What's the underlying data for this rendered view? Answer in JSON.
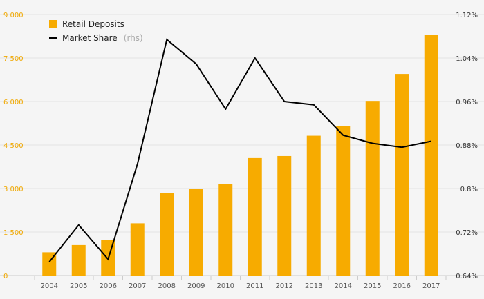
{
  "chart_data": {
    "type": "bar+line",
    "categories": [
      "2004",
      "2005",
      "2006",
      "2007",
      "2008",
      "2009",
      "2010",
      "2011",
      "2012",
      "2013",
      "2014",
      "2015",
      "2016",
      "2017"
    ],
    "series": [
      {
        "name": "Retail Deposits",
        "type": "bar",
        "axis": "left",
        "color": "#f7ab00",
        "values": [
          800,
          1050,
          1220,
          1800,
          2850,
          3000,
          3150,
          4050,
          4120,
          4820,
          5150,
          6020,
          6950,
          8300
        ]
      },
      {
        "name": "Market Share",
        "axis_note": "(rhs)",
        "type": "line",
        "axis": "right",
        "color": "#000000",
        "values": [
          0.665,
          0.733,
          0.67,
          0.845,
          1.074,
          1.029,
          0.946,
          1.04,
          0.96,
          0.954,
          0.898,
          0.883,
          0.876,
          0.887
        ]
      }
    ],
    "y_left": {
      "range": [
        0,
        9000
      ],
      "ticks": [
        0,
        1500,
        3000,
        4500,
        6000,
        7500,
        9000
      ],
      "tick_labels": [
        "0",
        "1 500",
        "3 000",
        "4 500",
        "6 000",
        "7 500",
        "9 000"
      ]
    },
    "y_right": {
      "range": [
        0.64,
        1.12
      ],
      "ticks": [
        0.64,
        0.72,
        0.8,
        0.88,
        0.96,
        1.04,
        1.12
      ],
      "tick_labels": [
        "0.64%",
        "0.72%",
        "0.8%",
        "0.88%",
        "0.96%",
        "1.04%",
        "1.12%"
      ]
    },
    "grid": true,
    "legend": "top-left"
  }
}
